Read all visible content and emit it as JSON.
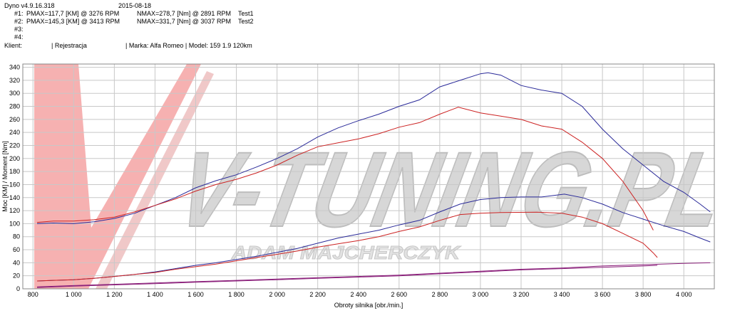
{
  "header": {
    "app": "Dyno v4.9.16.318",
    "date": "2015-08-18",
    "runs": [
      {
        "id": "#1:",
        "pmax": "PMAX=117,7 [KM] @ 3276 RPM",
        "nmax": "NMAX=278,7 [Nm] @ 2891 RPM",
        "name": "Test1"
      },
      {
        "id": "#2:",
        "pmax": "PMAX=145,3 [KM] @ 3413 RPM",
        "nmax": "NMAX=331,7 [Nm] @ 3037 RPM",
        "name": "Test2"
      },
      {
        "id": "#3:",
        "pmax": "",
        "nmax": "",
        "name": ""
      },
      {
        "id": "#4:",
        "pmax": "",
        "nmax": "",
        "name": ""
      }
    ],
    "client_label": "Klient:",
    "reg_label": "| Rejestracja",
    "model_label": "| Marka: Alfa Romeo | Model: 159 1.9 120km"
  },
  "watermark": {
    "main": "V-TUNING.PL",
    "sub": "ADAM MAJCHERCZYK"
  },
  "colors": {
    "test1": "#cc2222",
    "test2": "#2a2a99",
    "loss": "#8a1f7a",
    "grid": "#c8c8c8"
  },
  "chart_data": {
    "type": "line",
    "xlabel": "Obroty silnika [obr./min.]",
    "ylabel": "Moc [KM] / Moment [Nm]",
    "xlim": [
      750,
      4150
    ],
    "ylim": [
      0,
      345
    ],
    "x_ticks": [
      800,
      1000,
      1200,
      1400,
      1600,
      1800,
      2000,
      2200,
      2400,
      2600,
      2800,
      3000,
      3200,
      3400,
      3600,
      3800,
      4000
    ],
    "x_tick_labels": [
      "800",
      "1 000",
      "1 200",
      "1 400",
      "1 600",
      "1 800",
      "2 000",
      "2 200",
      "2 400",
      "2 600",
      "2 800",
      "3 000",
      "3 200",
      "3 400",
      "3 600",
      "3 800",
      "4 000"
    ],
    "y_ticks": [
      0,
      20,
      40,
      60,
      80,
      100,
      120,
      140,
      160,
      180,
      200,
      220,
      240,
      260,
      280,
      300,
      320,
      340
    ],
    "series": [
      {
        "name": "Test2",
        "quantity": "torque",
        "color": "#2a2a99",
        "points": [
          [
            820,
            100
          ],
          [
            900,
            101
          ],
          [
            1000,
            100
          ],
          [
            1100,
            103
          ],
          [
            1200,
            108
          ],
          [
            1300,
            116
          ],
          [
            1400,
            128
          ],
          [
            1500,
            140
          ],
          [
            1600,
            155
          ],
          [
            1700,
            166
          ],
          [
            1800,
            175
          ],
          [
            1900,
            187
          ],
          [
            2000,
            200
          ],
          [
            2100,
            215
          ],
          [
            2200,
            233
          ],
          [
            2300,
            247
          ],
          [
            2400,
            258
          ],
          [
            2500,
            268
          ],
          [
            2600,
            280
          ],
          [
            2700,
            290
          ],
          [
            2800,
            310
          ],
          [
            2900,
            320
          ],
          [
            3000,
            330
          ],
          [
            3037,
            331.7
          ],
          [
            3100,
            328
          ],
          [
            3200,
            312
          ],
          [
            3300,
            305
          ],
          [
            3400,
            300
          ],
          [
            3500,
            280
          ],
          [
            3600,
            245
          ],
          [
            3700,
            215
          ],
          [
            3800,
            190
          ],
          [
            3900,
            165
          ],
          [
            4000,
            148
          ],
          [
            4080,
            130
          ],
          [
            4130,
            118
          ]
        ]
      },
      {
        "name": "Test1",
        "quantity": "torque",
        "color": "#cc2222",
        "points": [
          [
            820,
            102
          ],
          [
            900,
            104
          ],
          [
            1000,
            104
          ],
          [
            1100,
            106
          ],
          [
            1200,
            110
          ],
          [
            1300,
            118
          ],
          [
            1400,
            128
          ],
          [
            1500,
            138
          ],
          [
            1600,
            150
          ],
          [
            1700,
            160
          ],
          [
            1800,
            168
          ],
          [
            1900,
            178
          ],
          [
            2000,
            190
          ],
          [
            2100,
            205
          ],
          [
            2200,
            218
          ],
          [
            2300,
            224
          ],
          [
            2400,
            230
          ],
          [
            2500,
            238
          ],
          [
            2600,
            248
          ],
          [
            2700,
            255
          ],
          [
            2800,
            268
          ],
          [
            2891,
            278.7
          ],
          [
            3000,
            270
          ],
          [
            3100,
            265
          ],
          [
            3200,
            260
          ],
          [
            3300,
            250
          ],
          [
            3400,
            245
          ],
          [
            3500,
            225
          ],
          [
            3600,
            200
          ],
          [
            3700,
            165
          ],
          [
            3800,
            120
          ],
          [
            3850,
            90
          ]
        ]
      },
      {
        "name": "Test2",
        "quantity": "power",
        "color": "#2a2a99",
        "points": [
          [
            820,
            12
          ],
          [
            900,
            13
          ],
          [
            1000,
            14
          ],
          [
            1100,
            16
          ],
          [
            1200,
            19
          ],
          [
            1300,
            22
          ],
          [
            1400,
            26
          ],
          [
            1500,
            31
          ],
          [
            1600,
            36
          ],
          [
            1700,
            40
          ],
          [
            1800,
            45
          ],
          [
            1900,
            50
          ],
          [
            2000,
            56
          ],
          [
            2100,
            62
          ],
          [
            2200,
            70
          ],
          [
            2300,
            78
          ],
          [
            2400,
            84
          ],
          [
            2500,
            90
          ],
          [
            2600,
            98
          ],
          [
            2700,
            105
          ],
          [
            2800,
            118
          ],
          [
            2900,
            130
          ],
          [
            3000,
            137
          ],
          [
            3100,
            140
          ],
          [
            3200,
            141
          ],
          [
            3300,
            141
          ],
          [
            3413,
            145.3
          ],
          [
            3500,
            140
          ],
          [
            3600,
            130
          ],
          [
            3700,
            117
          ],
          [
            3800,
            107
          ],
          [
            3900,
            97
          ],
          [
            4000,
            88
          ],
          [
            4080,
            78
          ],
          [
            4130,
            72
          ]
        ]
      },
      {
        "name": "Test1",
        "quantity": "power",
        "color": "#cc2222",
        "points": [
          [
            820,
            12
          ],
          [
            900,
            13
          ],
          [
            1000,
            14
          ],
          [
            1100,
            16
          ],
          [
            1200,
            19
          ],
          [
            1300,
            22
          ],
          [
            1400,
            25
          ],
          [
            1500,
            30
          ],
          [
            1600,
            34
          ],
          [
            1700,
            38
          ],
          [
            1800,
            43
          ],
          [
            1900,
            48
          ],
          [
            2000,
            53
          ],
          [
            2100,
            58
          ],
          [
            2200,
            64
          ],
          [
            2300,
            69
          ],
          [
            2400,
            74
          ],
          [
            2500,
            80
          ],
          [
            2600,
            88
          ],
          [
            2700,
            95
          ],
          [
            2800,
            105
          ],
          [
            2900,
            114
          ],
          [
            3000,
            116
          ],
          [
            3100,
            117
          ],
          [
            3276,
            117.7
          ],
          [
            3400,
            116
          ],
          [
            3500,
            110
          ],
          [
            3600,
            100
          ],
          [
            3700,
            85
          ],
          [
            3800,
            70
          ],
          [
            3850,
            55
          ],
          [
            3870,
            48
          ]
        ]
      },
      {
        "name": "Test2",
        "quantity": "loss",
        "color": "#8a1f7a",
        "points": [
          [
            820,
            3
          ],
          [
            1000,
            5
          ],
          [
            1200,
            7
          ],
          [
            1400,
            9
          ],
          [
            1600,
            11
          ],
          [
            1800,
            13
          ],
          [
            2000,
            15
          ],
          [
            2200,
            17
          ],
          [
            2400,
            19
          ],
          [
            2600,
            21
          ],
          [
            2800,
            24
          ],
          [
            3000,
            27
          ],
          [
            3200,
            30
          ],
          [
            3400,
            32
          ],
          [
            3600,
            35
          ],
          [
            3800,
            37
          ],
          [
            4000,
            39
          ],
          [
            4130,
            40
          ]
        ]
      },
      {
        "name": "Test1",
        "quantity": "loss",
        "color": "#8a1f7a",
        "points": [
          [
            820,
            2
          ],
          [
            1000,
            4
          ],
          [
            1200,
            6
          ],
          [
            1400,
            8
          ],
          [
            1600,
            10
          ],
          [
            1800,
            12
          ],
          [
            2000,
            14
          ],
          [
            2200,
            16
          ],
          [
            2400,
            18
          ],
          [
            2600,
            20
          ],
          [
            2800,
            23
          ],
          [
            3000,
            26
          ],
          [
            3200,
            29
          ],
          [
            3400,
            31
          ],
          [
            3600,
            33
          ],
          [
            3800,
            35
          ],
          [
            3870,
            36
          ]
        ]
      }
    ]
  }
}
